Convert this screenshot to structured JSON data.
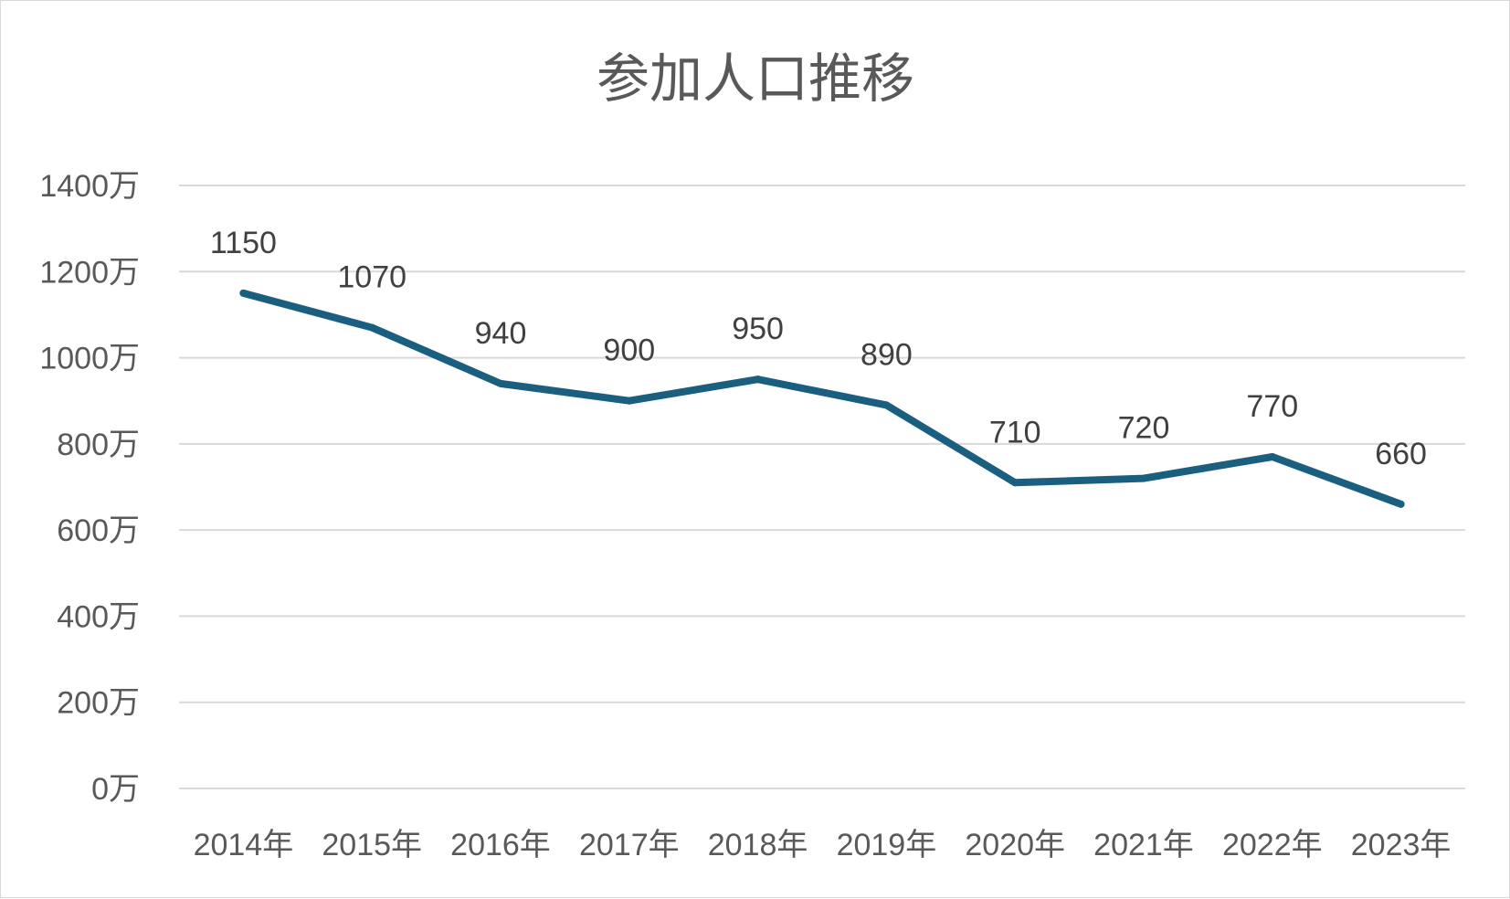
{
  "chart_data": {
    "type": "line",
    "title": "参加人口推移",
    "xlabel": "",
    "ylabel": "",
    "categories": [
      "2014年",
      "2015年",
      "2016年",
      "2017年",
      "2018年",
      "2019年",
      "2020年",
      "2021年",
      "2022年",
      "2023年"
    ],
    "series": [
      {
        "values": [
          1150,
          1070,
          940,
          900,
          950,
          890,
          710,
          720,
          770,
          660
        ]
      }
    ],
    "data_labels": [
      "1150",
      "1070",
      "940",
      "900",
      "950",
      "890",
      "710",
      "720",
      "770",
      "660"
    ],
    "ylim": [
      0,
      1400
    ],
    "yticks": [
      0,
      200,
      400,
      600,
      800,
      1000,
      1200,
      1400
    ],
    "ytick_labels": [
      "0万",
      "200万",
      "400万",
      "600万",
      "800万",
      "1000万",
      "1200万",
      "1400万"
    ],
    "grid": true,
    "legend": "none",
    "colors": {
      "series": "#1a5e80",
      "grid": "#d9d9d9",
      "text": "#595959"
    }
  }
}
